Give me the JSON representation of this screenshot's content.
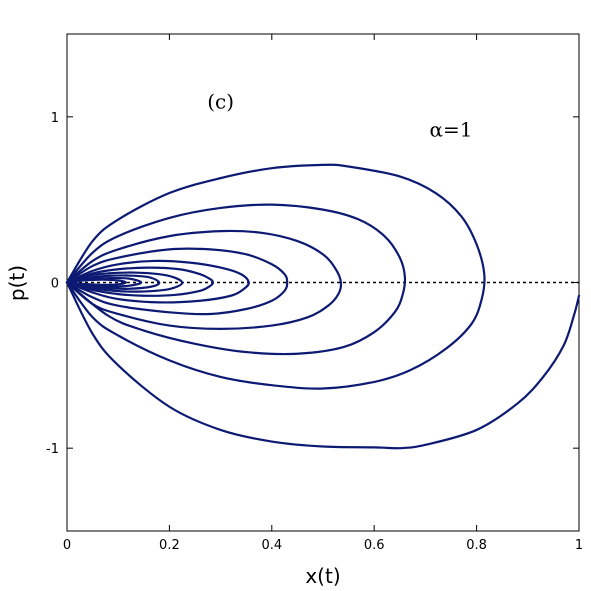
{
  "chart_data": {
    "type": "line",
    "xlabel": "x(t)",
    "ylabel": "p(t)",
    "xlim": [
      0,
      1
    ],
    "ylim": [
      -1.5,
      1.5
    ],
    "x_ticks": [
      0,
      0.2,
      0.4,
      0.6,
      0.8,
      1
    ],
    "x_tick_labels": [
      "0",
      "0.2",
      "0.4",
      "0.6",
      "0.8",
      "1"
    ],
    "y_ticks": [
      -1,
      0,
      1
    ],
    "y_tick_labels": [
      "-1",
      "0",
      "1"
    ],
    "grid": false,
    "reference_line": {
      "y": 0,
      "style": "dotted"
    },
    "annotations": [
      {
        "text": "(c)",
        "x": 0.3,
        "y": 1.05
      },
      {
        "text": "α=1",
        "x": 0.75,
        "y": 0.88
      }
    ],
    "curve_color": "#0d1a73",
    "series": [
      {
        "points": [
          [
            0,
            0
          ],
          [
            0.05,
            -0.31
          ],
          [
            0.1,
            -0.5
          ],
          [
            0.2,
            -0.75
          ],
          [
            0.3,
            -0.89
          ],
          [
            0.4,
            -0.96
          ],
          [
            0.5,
            -0.99
          ],
          [
            0.6,
            -0.995
          ],
          [
            0.65,
            -1.0
          ],
          [
            0.7,
            -0.98
          ],
          [
            0.8,
            -0.89
          ],
          [
            0.88,
            -0.73
          ],
          [
            0.93,
            -0.57
          ],
          [
            0.97,
            -0.38
          ],
          [
            0.99,
            -0.2
          ],
          [
            1.0,
            -0.08
          ]
        ]
      },
      {
        "points": [
          [
            0,
            0
          ],
          [
            0.05,
            0.25
          ],
          [
            0.1,
            0.38
          ],
          [
            0.2,
            0.54
          ],
          [
            0.3,
            0.63
          ],
          [
            0.4,
            0.69
          ],
          [
            0.5,
            0.71
          ],
          [
            0.55,
            0.7
          ],
          [
            0.65,
            0.64
          ],
          [
            0.72,
            0.54
          ],
          [
            0.77,
            0.4
          ],
          [
            0.8,
            0.23
          ],
          [
            0.815,
            0.05
          ],
          [
            0.81,
            -0.1
          ],
          [
            0.79,
            -0.25
          ],
          [
            0.74,
            -0.4
          ],
          [
            0.67,
            -0.53
          ],
          [
            0.6,
            -0.6
          ],
          [
            0.5,
            -0.64
          ],
          [
            0.4,
            -0.62
          ],
          [
            0.3,
            -0.57
          ],
          [
            0.2,
            -0.47
          ],
          [
            0.1,
            -0.32
          ],
          [
            0.05,
            -0.21
          ],
          [
            0,
            0
          ]
        ]
      },
      {
        "points": [
          [
            0,
            0
          ],
          [
            0.05,
            0.18
          ],
          [
            0.1,
            0.28
          ],
          [
            0.2,
            0.39
          ],
          [
            0.3,
            0.45
          ],
          [
            0.4,
            0.47
          ],
          [
            0.5,
            0.44
          ],
          [
            0.57,
            0.38
          ],
          [
            0.62,
            0.28
          ],
          [
            0.65,
            0.15
          ],
          [
            0.66,
            0.03
          ],
          [
            0.655,
            -0.08
          ],
          [
            0.64,
            -0.18
          ],
          [
            0.6,
            -0.3
          ],
          [
            0.54,
            -0.39
          ],
          [
            0.45,
            -0.43
          ],
          [
            0.35,
            -0.42
          ],
          [
            0.25,
            -0.37
          ],
          [
            0.15,
            -0.29
          ],
          [
            0.08,
            -0.2
          ],
          [
            0,
            0
          ]
        ]
      },
      {
        "points": [
          [
            0,
            0
          ],
          [
            0.05,
            0.13
          ],
          [
            0.1,
            0.2
          ],
          [
            0.2,
            0.28
          ],
          [
            0.3,
            0.31
          ],
          [
            0.38,
            0.3
          ],
          [
            0.45,
            0.25
          ],
          [
            0.5,
            0.17
          ],
          [
            0.525,
            0.08
          ],
          [
            0.535,
            0.0
          ],
          [
            0.53,
            -0.07
          ],
          [
            0.51,
            -0.14
          ],
          [
            0.47,
            -0.21
          ],
          [
            0.4,
            -0.26
          ],
          [
            0.3,
            -0.28
          ],
          [
            0.2,
            -0.26
          ],
          [
            0.1,
            -0.19
          ],
          [
            0.05,
            -0.13
          ],
          [
            0,
            0
          ]
        ]
      },
      {
        "points": [
          [
            0,
            0
          ],
          [
            0.05,
            0.1
          ],
          [
            0.1,
            0.15
          ],
          [
            0.2,
            0.2
          ],
          [
            0.28,
            0.2
          ],
          [
            0.35,
            0.17
          ],
          [
            0.4,
            0.11
          ],
          [
            0.425,
            0.05
          ],
          [
            0.43,
            0.0
          ],
          [
            0.425,
            -0.05
          ],
          [
            0.4,
            -0.11
          ],
          [
            0.35,
            -0.16
          ],
          [
            0.28,
            -0.19
          ],
          [
            0.2,
            -0.18
          ],
          [
            0.1,
            -0.14
          ],
          [
            0.05,
            -0.09
          ],
          [
            0,
            0
          ]
        ]
      },
      {
        "points": [
          [
            0,
            0
          ],
          [
            0.05,
            0.07
          ],
          [
            0.1,
            0.11
          ],
          [
            0.17,
            0.13
          ],
          [
            0.24,
            0.12
          ],
          [
            0.3,
            0.09
          ],
          [
            0.34,
            0.05
          ],
          [
            0.355,
            0.0
          ],
          [
            0.345,
            -0.04
          ],
          [
            0.32,
            -0.08
          ],
          [
            0.26,
            -0.11
          ],
          [
            0.18,
            -0.12
          ],
          [
            0.1,
            -0.1
          ],
          [
            0.05,
            -0.06
          ],
          [
            0,
            0
          ]
        ]
      },
      {
        "points": [
          [
            0,
            0
          ],
          [
            0.05,
            0.055
          ],
          [
            0.1,
            0.08
          ],
          [
            0.16,
            0.09
          ],
          [
            0.22,
            0.08
          ],
          [
            0.26,
            0.05
          ],
          [
            0.28,
            0.02
          ],
          [
            0.285,
            0.0
          ],
          [
            0.28,
            -0.02
          ],
          [
            0.26,
            -0.05
          ],
          [
            0.21,
            -0.075
          ],
          [
            0.15,
            -0.08
          ],
          [
            0.1,
            -0.07
          ],
          [
            0.05,
            -0.045
          ],
          [
            0,
            0
          ]
        ]
      },
      {
        "points": [
          [
            0,
            0
          ],
          [
            0.04,
            0.04
          ],
          [
            0.08,
            0.055
          ],
          [
            0.13,
            0.06
          ],
          [
            0.18,
            0.05
          ],
          [
            0.21,
            0.03
          ],
          [
            0.225,
            0.0
          ],
          [
            0.215,
            -0.025
          ],
          [
            0.19,
            -0.045
          ],
          [
            0.14,
            -0.055
          ],
          [
            0.09,
            -0.05
          ],
          [
            0.04,
            -0.03
          ],
          [
            0,
            0
          ]
        ]
      },
      {
        "points": [
          [
            0,
            0
          ],
          [
            0.04,
            0.028
          ],
          [
            0.08,
            0.04
          ],
          [
            0.12,
            0.042
          ],
          [
            0.16,
            0.032
          ],
          [
            0.18,
            0.0
          ],
          [
            0.165,
            -0.025
          ],
          [
            0.12,
            -0.038
          ],
          [
            0.08,
            -0.034
          ],
          [
            0.04,
            -0.02
          ],
          [
            0,
            0
          ]
        ]
      },
      {
        "points": [
          [
            0,
            0
          ],
          [
            0.04,
            0.02
          ],
          [
            0.08,
            0.026
          ],
          [
            0.12,
            0.024
          ],
          [
            0.145,
            0.0
          ],
          [
            0.12,
            -0.02
          ],
          [
            0.08,
            -0.023
          ],
          [
            0.04,
            -0.014
          ],
          [
            0,
            0
          ]
        ]
      },
      {
        "points": [
          [
            0,
            0
          ],
          [
            0.03,
            0.012
          ],
          [
            0.07,
            0.017
          ],
          [
            0.1,
            0.012
          ],
          [
            0.115,
            0.0
          ],
          [
            0.1,
            -0.011
          ],
          [
            0.07,
            -0.014
          ],
          [
            0.03,
            -0.008
          ],
          [
            0,
            0
          ]
        ]
      }
    ]
  }
}
